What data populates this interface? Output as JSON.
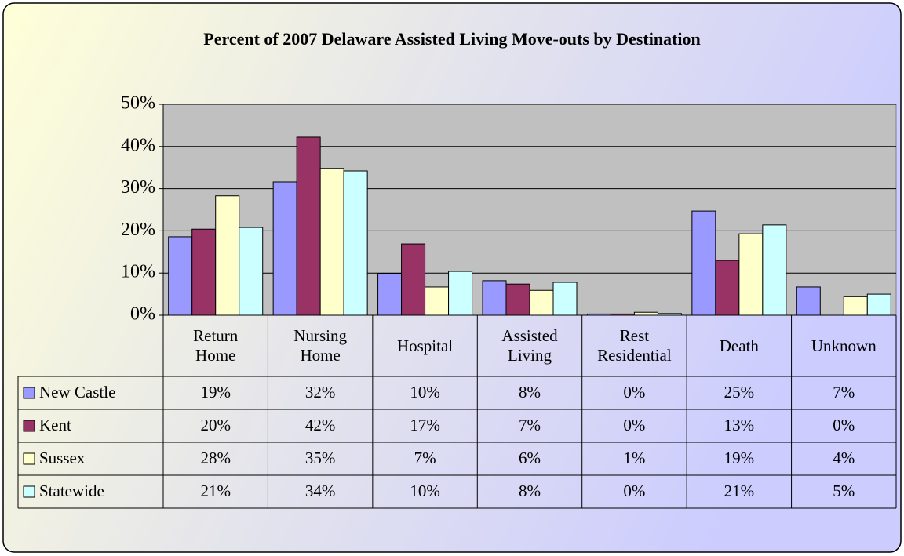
{
  "chart_data": {
    "type": "bar",
    "title": "Percent of 2007 Delaware Assisted Living Move-outs by Destination",
    "categories": [
      "Return Home",
      "Nursing Home",
      "Hospital",
      "Assisted Living",
      "Rest Residential",
      "Death",
      "Unknown"
    ],
    "series": [
      {
        "name": "New Castle",
        "color": "#9999ff",
        "values": [
          18.6,
          31.6,
          9.9,
          8.2,
          0.3,
          24.7,
          6.7
        ],
        "value_labels": [
          "19%",
          "32%",
          "10%",
          "8%",
          "0%",
          "25%",
          "7%"
        ]
      },
      {
        "name": "Kent",
        "color": "#993366",
        "values": [
          20.4,
          42.2,
          16.9,
          7.4,
          0.3,
          13.0,
          0
        ],
        "value_labels": [
          "20%",
          "42%",
          "17%",
          "7%",
          "0%",
          "13%",
          "0%"
        ]
      },
      {
        "name": "Sussex",
        "color": "#ffffcc",
        "values": [
          28.3,
          34.8,
          6.7,
          5.9,
          0.7,
          19.3,
          4.4
        ],
        "value_labels": [
          "28%",
          "35%",
          "7%",
          "6%",
          "1%",
          "19%",
          "4%"
        ]
      },
      {
        "name": "Statewide",
        "color": "#ccffff",
        "values": [
          20.8,
          34.2,
          10.4,
          7.8,
          0.4,
          21.4,
          5.0
        ],
        "value_labels": [
          "21%",
          "34%",
          "10%",
          "8%",
          "0%",
          "21%",
          "5%"
        ]
      }
    ],
    "ylim": [
      0,
      50
    ],
    "yticks": [
      {
        "value": 0,
        "label": "0%"
      },
      {
        "value": 10,
        "label": "10%"
      },
      {
        "value": 20,
        "label": "20%"
      },
      {
        "value": 30,
        "label": "30%"
      },
      {
        "value": 40,
        "label": "40%"
      },
      {
        "value": 50,
        "label": "50%"
      }
    ],
    "grid": true,
    "plot_background": "#c0c0c0"
  }
}
